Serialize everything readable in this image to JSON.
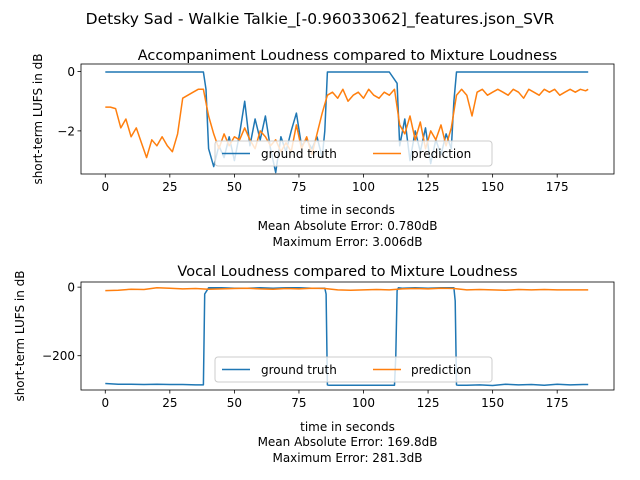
{
  "suptitle": "Detsky Sad - Walkie Talkie_[-0.96033062]_features.json_SVR",
  "chart_data": [
    {
      "type": "line",
      "title": "Accompaniment Loudness compared to Mixture Loudness",
      "xlabel": "time in seconds",
      "ylabel": "short-term LUFS in dB",
      "xlim": [
        -9.4,
        197
      ],
      "ylim": [
        -3.45,
        0.25
      ],
      "xticks": [
        0,
        25,
        50,
        75,
        100,
        125,
        150,
        175
      ],
      "yticks": [
        -2,
        0
      ],
      "grid": false,
      "legend_position": "lower-center",
      "stats": [
        "Mean Absolute Error: 0.780dB",
        "Maximum Error: 3.006dB"
      ],
      "series": [
        {
          "name": "ground truth",
          "color": "#1f77b4",
          "x": [
            0,
            38,
            39,
            40,
            42,
            44,
            46,
            48,
            50,
            52,
            54,
            56,
            58,
            60,
            62,
            64,
            66,
            68,
            70,
            72,
            74,
            76,
            78,
            80,
            82,
            84,
            85,
            86,
            90,
            95,
            100,
            105,
            110,
            113,
            114,
            116,
            118,
            120,
            122,
            124,
            126,
            128,
            130,
            132,
            134,
            135,
            136,
            140,
            150,
            160,
            170,
            180,
            187
          ],
          "y": [
            -0.02,
            -0.02,
            -0.6,
            -2.6,
            -3.2,
            -2.5,
            -2.9,
            -2.2,
            -3.0,
            -2.1,
            -1.0,
            -2.5,
            -1.6,
            -2.3,
            -1.5,
            -2.6,
            -3.4,
            -2.2,
            -2.7,
            -2.0,
            -1.4,
            -2.5,
            -2.3,
            -2.6,
            -2.2,
            -2.9,
            -2.0,
            -0.02,
            -0.02,
            -0.02,
            -0.02,
            -0.02,
            -0.02,
            -0.4,
            -2.5,
            -1.6,
            -3.0,
            -2.0,
            -2.7,
            -1.9,
            -3.1,
            -2.3,
            -2.8,
            -2.1,
            -2.6,
            -1.0,
            -0.02,
            -0.02,
            -0.02,
            -0.02,
            -0.02,
            -0.02,
            -0.02
          ]
        },
        {
          "name": "prediction",
          "color": "#ff7f0e",
          "x": [
            0,
            2,
            4,
            6,
            8,
            10,
            12,
            14,
            16,
            18,
            20,
            22,
            24,
            26,
            28,
            30,
            32,
            34,
            36,
            38,
            40,
            42,
            44,
            46,
            48,
            50,
            52,
            54,
            56,
            58,
            60,
            62,
            64,
            66,
            68,
            70,
            72,
            74,
            76,
            78,
            80,
            82,
            84,
            86,
            88,
            90,
            92,
            94,
            96,
            98,
            100,
            102,
            104,
            106,
            108,
            110,
            112,
            114,
            116,
            118,
            120,
            122,
            124,
            126,
            128,
            130,
            132,
            134,
            136,
            138,
            140,
            142,
            144,
            146,
            148,
            150,
            152,
            154,
            156,
            158,
            160,
            162,
            164,
            166,
            168,
            170,
            172,
            174,
            176,
            178,
            180,
            182,
            184,
            186,
            187
          ],
          "y": [
            -1.2,
            -1.2,
            -1.25,
            -1.9,
            -1.6,
            -2.2,
            -1.9,
            -2.4,
            -2.9,
            -2.3,
            -2.5,
            -2.2,
            -2.5,
            -2.7,
            -2.1,
            -0.9,
            -0.8,
            -0.7,
            -0.6,
            -0.6,
            -1.5,
            -2.1,
            -2.6,
            -2.1,
            -2.5,
            -2.2,
            -2.3,
            -1.9,
            -2.3,
            -2.6,
            -2.0,
            -2.2,
            -2.5,
            -2.3,
            -2.7,
            -2.4,
            -2.7,
            -1.8,
            -2.6,
            -2.2,
            -2.8,
            -2.1,
            -1.4,
            -0.8,
            -0.7,
            -0.9,
            -0.6,
            -1.0,
            -0.8,
            -0.7,
            -0.9,
            -0.6,
            -0.8,
            -0.9,
            -0.7,
            -0.8,
            -0.6,
            -1.8,
            -2.1,
            -1.5,
            -2.3,
            -1.7,
            -2.6,
            -2.0,
            -2.3,
            -1.8,
            -2.5,
            -1.9,
            -0.8,
            -0.6,
            -0.8,
            -1.5,
            -0.7,
            -0.6,
            -0.8,
            -0.7,
            -0.6,
            -0.7,
            -0.8,
            -0.6,
            -0.7,
            -0.9,
            -0.6,
            -0.7,
            -0.8,
            -0.6,
            -0.7,
            -0.6,
            -0.8,
            -0.7,
            -0.6,
            -0.7,
            -0.6,
            -0.65,
            -0.6
          ]
        }
      ]
    },
    {
      "type": "line",
      "title": "Vocal Loudness compared to Mixture Loudness",
      "xlabel": "time in seconds",
      "ylabel": "short-term LUFS in dB",
      "xlim": [
        -9.4,
        197
      ],
      "ylim": [
        -300,
        15
      ],
      "xticks": [
        0,
        25,
        50,
        75,
        100,
        125,
        150,
        175
      ],
      "yticks": [
        -200,
        0
      ],
      "grid": false,
      "legend_position": "lower-center",
      "stats": [
        "Mean Absolute Error: 169.8dB",
        "Maximum Error: 281.3dB"
      ],
      "series": [
        {
          "name": "ground truth",
          "color": "#1f77b4",
          "x": [
            0,
            5,
            10,
            15,
            20,
            25,
            30,
            35,
            37,
            38,
            38.5,
            40,
            45,
            50,
            55,
            60,
            65,
            70,
            75,
            80,
            85,
            85.5,
            86,
            86.5,
            90,
            95,
            100,
            105,
            110,
            112,
            112.5,
            113,
            113.5,
            115,
            120,
            125,
            130,
            134,
            135,
            135.5,
            136,
            136.5,
            140,
            145,
            150,
            155,
            160,
            165,
            170,
            175,
            180,
            185,
            187
          ],
          "y": [
            -281,
            -283,
            -283,
            -284,
            -283,
            -284,
            -284,
            -285,
            -285,
            -285,
            -20,
            -2,
            -2,
            -3,
            -3,
            -2,
            -3,
            -2,
            -2,
            -3,
            -3,
            -20,
            -285,
            -286,
            -286,
            -286,
            -286,
            -286,
            -286,
            -286,
            -200,
            -10,
            -2,
            -3,
            -2,
            -3,
            -2,
            -2,
            -2,
            -40,
            -285,
            -286,
            -286,
            -285,
            -287,
            -283,
            -285,
            -284,
            -286,
            -283,
            -285,
            -284,
            -284
          ]
        },
        {
          "name": "prediction",
          "color": "#ff7f0e",
          "x": [
            0,
            5,
            10,
            15,
            20,
            25,
            30,
            35,
            40,
            45,
            50,
            55,
            60,
            65,
            70,
            75,
            80,
            85,
            90,
            95,
            100,
            105,
            110,
            115,
            120,
            125,
            130,
            135,
            140,
            145,
            150,
            155,
            160,
            165,
            170,
            175,
            180,
            187
          ],
          "y": [
            -10,
            -9,
            -6,
            -7,
            -2,
            -3,
            -5,
            -4,
            -6,
            -5,
            -4,
            -3,
            -5,
            -6,
            -4,
            -5,
            -3,
            -4,
            -8,
            -9,
            -8,
            -7,
            -8,
            -5,
            -4,
            -5,
            -3,
            -4,
            -8,
            -7,
            -8,
            -9,
            -7,
            -8,
            -7,
            -8,
            -8,
            -8
          ]
        }
      ]
    }
  ]
}
